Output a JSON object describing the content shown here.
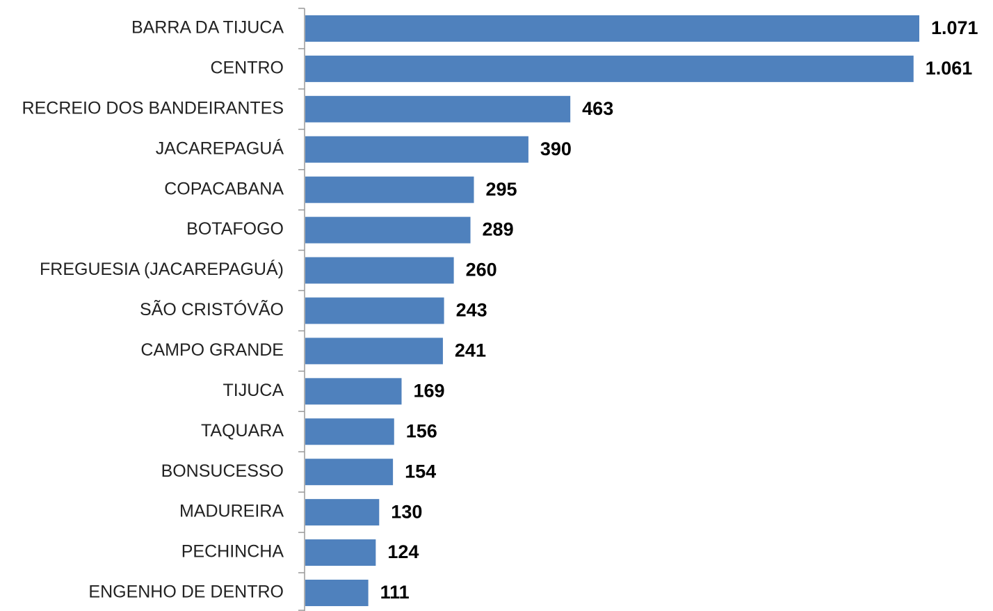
{
  "chart_data": {
    "type": "bar",
    "orientation": "horizontal",
    "categories": [
      "BARRA DA TIJUCA",
      "CENTRO",
      "RECREIO DOS BANDEIRANTES",
      "JACAREPAGUÁ",
      "COPACABANA",
      "BOTAFOGO",
      "FREGUESIA (JACAREPAGUÁ)",
      "SÃO CRISTÓVÃO",
      "CAMPO GRANDE",
      "TIJUCA",
      "TAQUARA",
      "BONSUCESSO",
      "MADUREIRA",
      "PECHINCHA",
      "ENGENHO DE DENTRO"
    ],
    "values": [
      1071,
      1061,
      463,
      390,
      295,
      289,
      260,
      243,
      241,
      169,
      156,
      154,
      130,
      124,
      111
    ],
    "value_labels": [
      "1.071",
      "1.061",
      "463",
      "390",
      "295",
      "289",
      "260",
      "243",
      "241",
      "169",
      "156",
      "154",
      "130",
      "124",
      "111"
    ],
    "color": "#4f81bd"
  }
}
